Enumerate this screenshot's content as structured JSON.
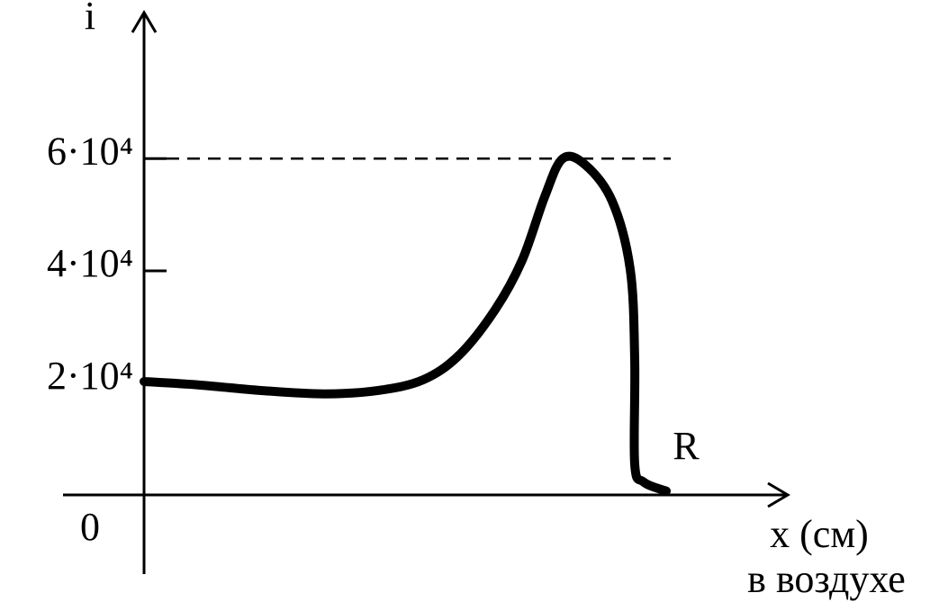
{
  "chart_data": {
    "type": "line",
    "y_label": "i",
    "x_label": "x (см)",
    "x_sublabel": "в воздухе",
    "annotation": "R",
    "xlim": [
      -90,
      715
    ],
    "ylim": [
      -14000,
      86000
    ],
    "xticks": [
      0
    ],
    "yticks": [
      {
        "value": 20000,
        "label": "2·10⁴"
      },
      {
        "value": 40000,
        "label": "4·10⁴"
      },
      {
        "value": 60000,
        "label": "6·10⁴"
      }
    ],
    "dashed_tick": true,
    "series": [
      {
        "name": null,
        "color": "#000000",
        "x": [
          0,
          60,
          130,
          200,
          260,
          310,
          350,
          390,
          420,
          445,
          465,
          490,
          520,
          540,
          545,
          545,
          555,
          580
        ],
        "values": [
          20300,
          19700,
          18700,
          18100,
          18700,
          20600,
          25000,
          33100,
          41900,
          53200,
          60000,
          58900,
          52400,
          40300,
          24200,
          5600,
          2400,
          800
        ]
      }
    ]
  }
}
